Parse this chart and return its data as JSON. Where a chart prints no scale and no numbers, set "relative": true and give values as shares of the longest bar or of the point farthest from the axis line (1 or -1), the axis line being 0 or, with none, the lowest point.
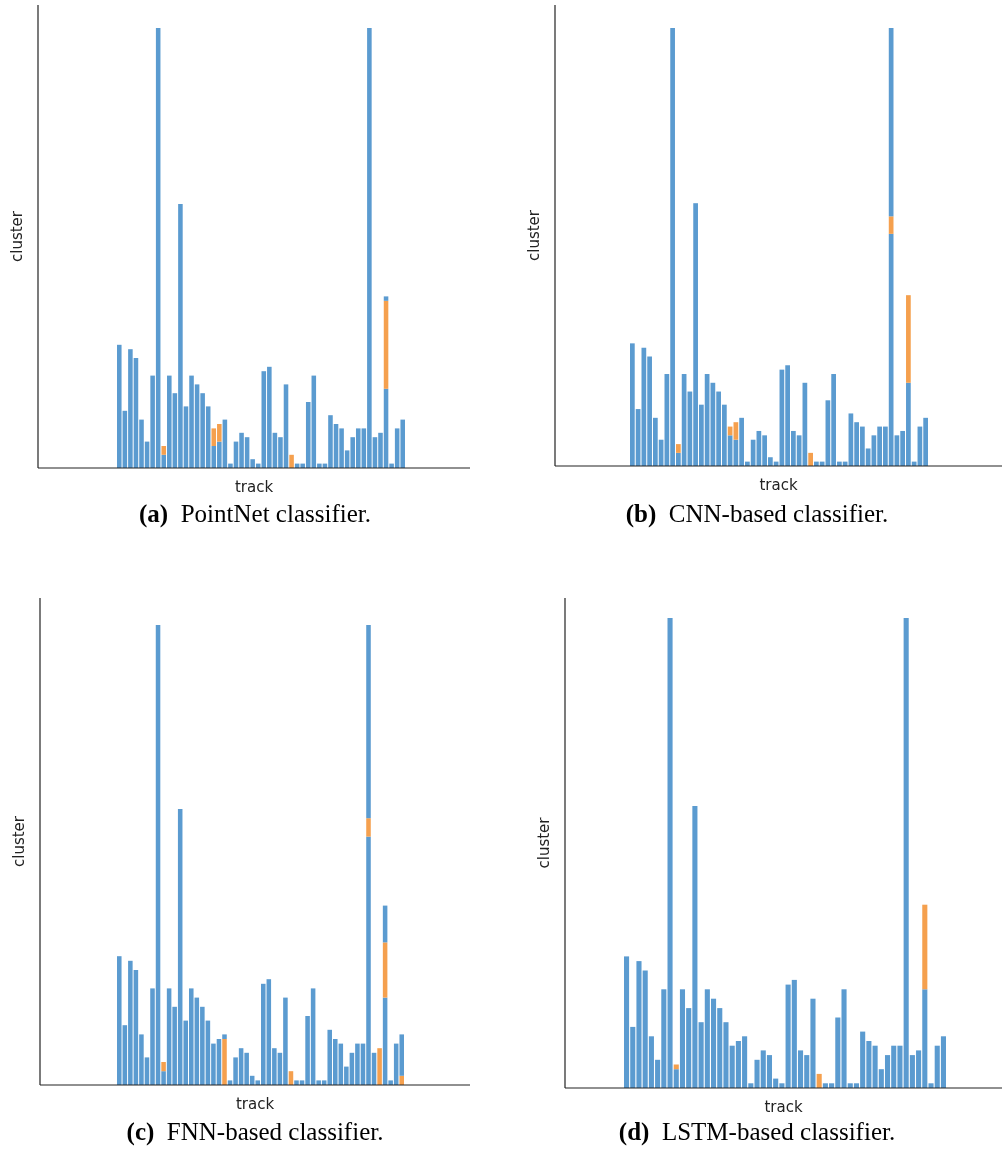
{
  "chart_data": [
    {
      "type": "bar",
      "title": "(a) PointNet classifier.",
      "xlabel": "track",
      "ylabel": "cluster",
      "relative": true,
      "stacked": true,
      "categories": [
        null,
        null,
        null,
        null,
        null,
        null,
        null,
        null,
        null,
        null,
        null,
        null,
        null,
        null,
        null,
        null,
        null,
        null,
        null,
        null,
        null,
        null,
        null,
        null,
        null,
        null,
        null,
        null,
        null,
        null,
        null,
        null,
        null,
        null,
        null,
        null,
        null,
        null,
        null,
        null,
        null,
        null,
        null,
        null,
        null,
        null,
        null,
        null,
        null,
        null,
        null,
        null
      ],
      "series": [
        {
          "color": "#5b9bd0",
          "values": [
            0.28,
            0.13,
            0.27,
            0.25,
            0.11,
            0.06,
            0.21,
            1,
            0.03,
            0.21,
            0.17,
            0.6,
            0.14,
            0.21,
            0.19,
            0.17,
            0.14,
            0.05,
            0.06,
            0.11,
            0.01,
            0.06,
            0.08,
            0.07,
            0.02,
            0.01,
            0.22,
            0.23,
            0.08,
            0.07,
            0.19,
            0,
            0.01,
            0.01,
            0.15,
            0.21,
            0.01,
            0.01,
            0.12,
            0.1,
            0.09,
            0.04,
            0.07,
            0.09,
            0.09,
            1,
            0.07,
            0.08,
            0.18,
            0.01,
            0.09,
            0.11
          ]
        },
        {
          "color": "#f5a04e",
          "values": [
            0,
            0,
            0,
            0,
            0,
            0,
            0,
            0,
            0.02,
            0,
            0,
            0,
            0,
            0,
            0,
            0,
            0,
            0.04,
            0.04,
            0,
            0,
            0,
            0,
            0,
            0,
            0,
            0,
            0,
            0,
            0,
            0,
            0.03,
            0,
            0,
            0,
            0,
            0,
            0,
            0,
            0,
            0,
            0,
            0,
            0,
            0,
            0,
            0,
            0,
            0.2,
            0,
            0,
            0
          ]
        },
        {
          "color": "#5b9bd0",
          "values": [
            0,
            0,
            0,
            0,
            0,
            0,
            0,
            0,
            0,
            0,
            0,
            0,
            0,
            0,
            0,
            0,
            0,
            0,
            0,
            0,
            0,
            0,
            0,
            0,
            0,
            0,
            0,
            0,
            0,
            0,
            0,
            0,
            0,
            0,
            0,
            0,
            0,
            0,
            0,
            0,
            0,
            0,
            0,
            0,
            0,
            0,
            0,
            0,
            0.01,
            0,
            0,
            0
          ]
        }
      ]
    },
    {
      "type": "bar",
      "title": "(b) CNN-based classifier.",
      "xlabel": "track",
      "ylabel": "cluster",
      "relative": true,
      "stacked": true,
      "categories": [
        null,
        null,
        null,
        null,
        null,
        null,
        null,
        null,
        null,
        null,
        null,
        null,
        null,
        null,
        null,
        null,
        null,
        null,
        null,
        null,
        null,
        null,
        null,
        null,
        null,
        null,
        null,
        null,
        null,
        null,
        null,
        null,
        null,
        null,
        null,
        null,
        null,
        null,
        null,
        null,
        null,
        null,
        null,
        null,
        null,
        null,
        null,
        null,
        null,
        null,
        null,
        null
      ],
      "series": [
        {
          "color": "#5b9bd0",
          "values": [
            0.28,
            0.13,
            0.27,
            0.25,
            0.11,
            0.06,
            0.21,
            1,
            0.03,
            0.21,
            0.17,
            0.6,
            0.14,
            0.21,
            0.19,
            0.17,
            0.14,
            0.07,
            0.06,
            0.11,
            0.01,
            0.06,
            0.08,
            0.07,
            0.02,
            0.01,
            0.22,
            0.23,
            0.08,
            0.07,
            0.19,
            0,
            0.01,
            0.01,
            0.15,
            0.21,
            0.01,
            0.01,
            0.12,
            0.1,
            0.09,
            0.04,
            0.07,
            0.09,
            0.09,
            0.53,
            0.07,
            0.08,
            0.19,
            0.01,
            0.09,
            0.11
          ]
        },
        {
          "color": "#f5a04e",
          "values": [
            0,
            0,
            0,
            0,
            0,
            0,
            0,
            0,
            0.02,
            0,
            0,
            0,
            0,
            0,
            0,
            0,
            0,
            0.02,
            0.04,
            0,
            0,
            0,
            0,
            0,
            0,
            0,
            0,
            0,
            0,
            0,
            0,
            0.03,
            0,
            0,
            0,
            0,
            0,
            0,
            0,
            0,
            0,
            0,
            0,
            0,
            0,
            0.04,
            0,
            0,
            0.2,
            0,
            0,
            0
          ]
        },
        {
          "color": "#5b9bd0",
          "values": [
            0,
            0,
            0,
            0,
            0,
            0,
            0,
            0,
            0,
            0,
            0,
            0,
            0,
            0,
            0,
            0,
            0,
            0,
            0,
            0,
            0,
            0,
            0,
            0,
            0,
            0,
            0,
            0,
            0,
            0,
            0,
            0,
            0,
            0,
            0,
            0,
            0,
            0,
            0,
            0,
            0,
            0,
            0,
            0,
            0,
            0.43,
            0,
            0,
            0,
            0,
            0,
            0
          ]
        }
      ]
    },
    {
      "type": "bar",
      "title": "(c) FNN-based classifier.",
      "xlabel": "track",
      "ylabel": "cluster",
      "relative": true,
      "stacked": true,
      "categories": [
        null,
        null,
        null,
        null,
        null,
        null,
        null,
        null,
        null,
        null,
        null,
        null,
        null,
        null,
        null,
        null,
        null,
        null,
        null,
        null,
        null,
        null,
        null,
        null,
        null,
        null,
        null,
        null,
        null,
        null,
        null,
        null,
        null,
        null,
        null,
        null,
        null,
        null,
        null,
        null,
        null,
        null,
        null,
        null,
        null,
        null,
        null,
        null,
        null,
        null,
        null,
        null
      ],
      "series": [
        {
          "color": "#5b9bd0",
          "values": [
            0.28,
            0.13,
            0.27,
            0.25,
            0.11,
            0.06,
            0.21,
            1,
            0.03,
            0.21,
            0.17,
            0.6,
            0.14,
            0.21,
            0.19,
            0.17,
            0.14,
            0.09,
            0.1,
            0,
            0.01,
            0.06,
            0.08,
            0.07,
            0.02,
            0.01,
            0.22,
            0.23,
            0.08,
            0.07,
            0.19,
            0,
            0.01,
            0.01,
            0.15,
            0.21,
            0.01,
            0.01,
            0.12,
            0.1,
            0.09,
            0.04,
            0.07,
            0.09,
            0.09,
            0.54,
            0.07,
            0,
            0.19,
            0.01,
            0.09,
            0
          ]
        },
        {
          "color": "#f5a04e",
          "values": [
            0,
            0,
            0,
            0,
            0,
            0,
            0,
            0,
            0.02,
            0,
            0,
            0,
            0,
            0,
            0,
            0,
            0,
            0,
            0,
            0.1,
            0,
            0,
            0,
            0,
            0,
            0,
            0,
            0,
            0,
            0,
            0,
            0.03,
            0,
            0,
            0,
            0,
            0,
            0,
            0,
            0,
            0,
            0,
            0,
            0,
            0,
            0.04,
            0,
            0.08,
            0.12,
            0,
            0,
            0.02
          ]
        },
        {
          "color": "#5b9bd0",
          "values": [
            0,
            0,
            0,
            0,
            0,
            0,
            0,
            0,
            0,
            0,
            0,
            0,
            0,
            0,
            0,
            0,
            0,
            0,
            0,
            0.01,
            0,
            0,
            0,
            0,
            0,
            0,
            0,
            0,
            0,
            0,
            0,
            0,
            0,
            0,
            0,
            0,
            0,
            0,
            0,
            0,
            0,
            0,
            0,
            0,
            0,
            0.42,
            0,
            0,
            0.08,
            0,
            0,
            0.09
          ]
        }
      ]
    },
    {
      "type": "bar",
      "title": "(d) LSTM-based classifier.",
      "xlabel": "track",
      "ylabel": "cluster",
      "relative": true,
      "stacked": true,
      "categories": [
        null,
        null,
        null,
        null,
        null,
        null,
        null,
        null,
        null,
        null,
        null,
        null,
        null,
        null,
        null,
        null,
        null,
        null,
        null,
        null,
        null,
        null,
        null,
        null,
        null,
        null,
        null,
        null,
        null,
        null,
        null,
        null,
        null,
        null,
        null,
        null,
        null,
        null,
        null,
        null,
        null,
        null,
        null,
        null,
        null,
        null,
        null,
        null,
        null,
        null,
        null,
        null
      ],
      "series": [
        {
          "color": "#5b9bd0",
          "values": [
            0.28,
            0.13,
            0.27,
            0.25,
            0.11,
            0.06,
            0.21,
            1,
            0.04,
            0.21,
            0.17,
            0.6,
            0.14,
            0.21,
            0.19,
            0.17,
            0.14,
            0.09,
            0.1,
            0.11,
            0.01,
            0.06,
            0.08,
            0.07,
            0.02,
            0.01,
            0.22,
            0.23,
            0.08,
            0.07,
            0.19,
            0,
            0.01,
            0.01,
            0.15,
            0.21,
            0.01,
            0.01,
            0.12,
            0.1,
            0.09,
            0.04,
            0.07,
            0.09,
            0.09,
            1,
            0.07,
            0.08,
            0.21,
            0.01,
            0.09,
            0.11
          ]
        },
        {
          "color": "#f5a04e",
          "values": [
            0,
            0,
            0,
            0,
            0,
            0,
            0,
            0,
            0.01,
            0,
            0,
            0,
            0,
            0,
            0,
            0,
            0,
            0,
            0,
            0,
            0,
            0,
            0,
            0,
            0,
            0,
            0,
            0,
            0,
            0,
            0,
            0.03,
            0,
            0,
            0,
            0,
            0,
            0,
            0,
            0,
            0,
            0,
            0,
            0,
            0,
            0,
            0,
            0,
            0.18,
            0,
            0,
            0
          ]
        }
      ]
    }
  ]
}
